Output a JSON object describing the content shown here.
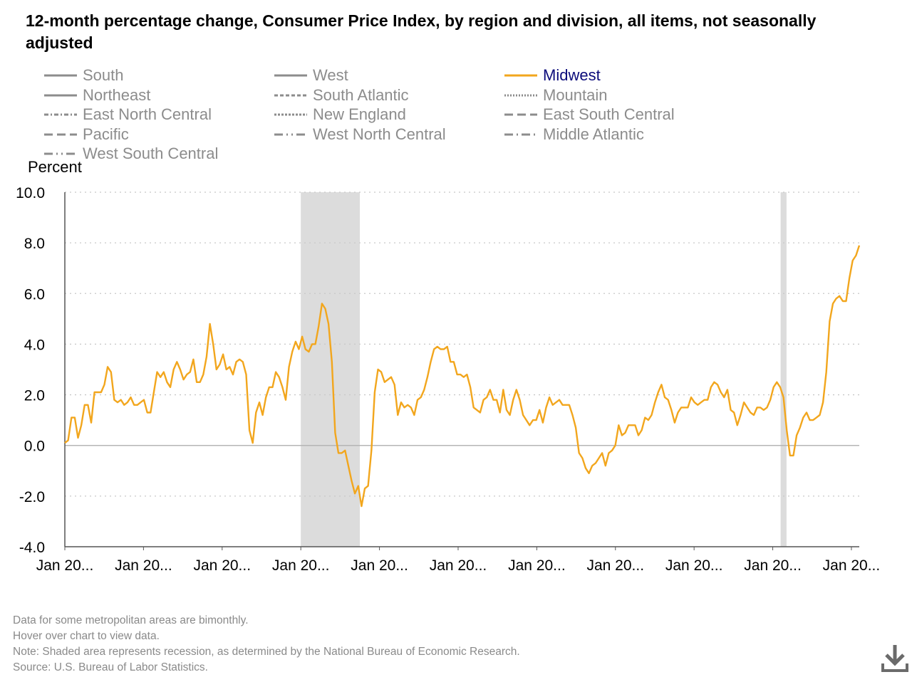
{
  "title": "12-month percentage change, Consumer Price Index, by region and division, all items, not seasonally adjusted",
  "icons": {
    "download": "download-icon"
  },
  "colors": {
    "midwest": "#f2a61d",
    "inactive": "#8c8c8c",
    "grid": "#c8c8c8",
    "recession": "#dcdcdc",
    "active_label": "#0b0b7a"
  },
  "legend": [
    {
      "label": "South",
      "dash": "solid",
      "active": false
    },
    {
      "label": "West",
      "dash": "solid",
      "active": false
    },
    {
      "label": "Midwest",
      "dash": "solid",
      "active": true
    },
    {
      "label": "Northeast",
      "dash": "solid",
      "active": false
    },
    {
      "label": "South Atlantic",
      "dash": "dashed",
      "active": false
    },
    {
      "label": "Mountain",
      "dash": "dotted",
      "active": false
    },
    {
      "label": "East North Central",
      "dash": "dashdot",
      "active": false
    },
    {
      "label": "New England",
      "dash": "shortdash",
      "active": false
    },
    {
      "label": "East South Central",
      "dash": "longdash",
      "active": false
    },
    {
      "label": "Pacific",
      "dash": "longdash",
      "active": false
    },
    {
      "label": "West North Central",
      "dash": "longdashdotdot",
      "active": false
    },
    {
      "label": "Middle Atlantic",
      "dash": "longdashdot",
      "active": false
    },
    {
      "label": "West South Central",
      "dash": "longdashdotdot",
      "active": false
    }
  ],
  "chart_data": {
    "type": "line",
    "title": "12-month percentage change, Consumer Price Index, by region and division, all items, not seasonally adjusted",
    "ylabel": "Percent",
    "xlabel": "",
    "ylim": [
      -4.0,
      10.0
    ],
    "yticks": [
      "10.0",
      "8.0",
      "6.0",
      "4.0",
      "2.0",
      "0.0",
      "-2.0",
      "-4.0"
    ],
    "ytick_values": [
      10,
      8,
      6,
      4,
      2,
      0,
      -2,
      -4
    ],
    "x_start_index": 0,
    "x_end_index": 202,
    "xticks": [
      "Jan 20...",
      "Jan 20...",
      "Jan 20...",
      "Jan 20...",
      "Jan 20...",
      "Jan 20...",
      "Jan 20...",
      "Jan 20...",
      "Jan 20...",
      "Jan 20...",
      "Jan 20..."
    ],
    "xtick_indices": [
      0,
      20,
      40,
      60,
      80,
      100,
      120,
      140,
      160,
      180,
      200
    ],
    "recessions": [
      [
        60,
        75
      ],
      [
        182,
        183.5
      ]
    ],
    "grid": true,
    "series": [
      {
        "name": "Midwest",
        "color": "#f2a61d",
        "values": [
          0.1,
          0.2,
          1.1,
          1.1,
          0.3,
          0.8,
          1.6,
          1.6,
          0.9,
          2.1,
          2.1,
          2.1,
          2.4,
          3.1,
          2.9,
          1.8,
          1.7,
          1.8,
          1.6,
          1.7,
          1.9,
          1.6,
          1.6,
          1.7,
          1.8,
          1.3,
          1.3,
          2.1,
          2.9,
          2.7,
          2.9,
          2.5,
          2.3,
          3.0,
          3.3,
          3.0,
          2.6,
          2.8,
          2.9,
          3.4,
          2.5,
          2.5,
          2.8,
          3.5,
          4.8,
          4.0,
          3.0,
          3.2,
          3.6,
          3.0,
          3.1,
          2.8,
          3.3,
          3.4,
          3.3,
          2.8,
          0.6,
          0.1,
          1.3,
          1.7,
          1.2,
          1.9,
          2.3,
          2.3,
          2.9,
          2.7,
          2.3,
          1.8,
          3.1,
          3.7,
          4.1,
          3.8,
          4.3,
          3.8,
          3.7,
          4.0,
          4.0,
          4.7,
          5.6,
          5.4,
          4.8,
          3.3,
          0.5,
          -0.3,
          -0.3,
          -0.2,
          -0.8,
          -1.4,
          -1.9,
          -1.6,
          -2.4,
          -1.7,
          -1.6,
          -0.2,
          2.1,
          3.0,
          2.9,
          2.5,
          2.6,
          2.7,
          2.4,
          1.2,
          1.7,
          1.5,
          1.6,
          1.5,
          1.2,
          1.8,
          1.9,
          2.2,
          2.7,
          3.3,
          3.8,
          3.9,
          3.8,
          3.8,
          3.9,
          3.3,
          3.3,
          2.8,
          2.8,
          2.7,
          2.8,
          2.3,
          1.5,
          1.4,
          1.3,
          1.8,
          1.9,
          2.2,
          1.8,
          1.8,
          1.3,
          2.2,
          1.4,
          1.2,
          1.8,
          2.2,
          1.8,
          1.2,
          1.0,
          0.8,
          1.0,
          1.0,
          1.4,
          0.9,
          1.5,
          1.9,
          1.6,
          1.7,
          1.8,
          1.6,
          1.6,
          1.6,
          1.2,
          0.7,
          -0.3,
          -0.5,
          -0.9,
          -1.1,
          -0.8,
          -0.7,
          -0.5,
          -0.3,
          -0.8,
          -0.3,
          -0.2,
          0.0,
          0.8,
          0.4,
          0.5,
          0.8,
          0.8,
          0.8,
          0.4,
          0.6,
          1.1,
          1.0,
          1.2,
          1.7,
          2.1,
          2.4,
          1.9,
          1.8,
          1.4,
          0.9,
          1.3,
          1.5,
          1.5,
          1.5,
          1.9,
          1.7,
          1.6,
          1.7,
          1.8,
          1.8,
          2.3,
          2.5,
          2.4,
          2.1,
          1.9,
          2.2,
          1.4,
          1.3,
          0.8,
          1.2,
          1.7,
          1.5,
          1.3,
          1.2,
          1.5,
          1.5,
          1.4,
          1.5,
          1.8,
          2.3,
          2.5,
          2.3,
          1.9,
          0.6,
          -0.4,
          -0.4,
          0.4,
          0.7,
          1.1,
          1.3,
          1.0,
          1.0,
          1.1,
          1.2,
          1.7,
          2.9,
          4.9,
          5.6,
          5.8,
          5.9,
          5.7,
          5.7,
          6.6,
          7.3,
          7.5,
          7.9
        ]
      }
    ]
  },
  "footnotes": [
    "Data for some metropolitan areas are bimonthly.",
    "Hover over chart to view data.",
    "Note: Shaded area represents recession, as determined by the National Bureau of Economic Research.",
    "Source: U.S. Bureau of Labor Statistics."
  ]
}
